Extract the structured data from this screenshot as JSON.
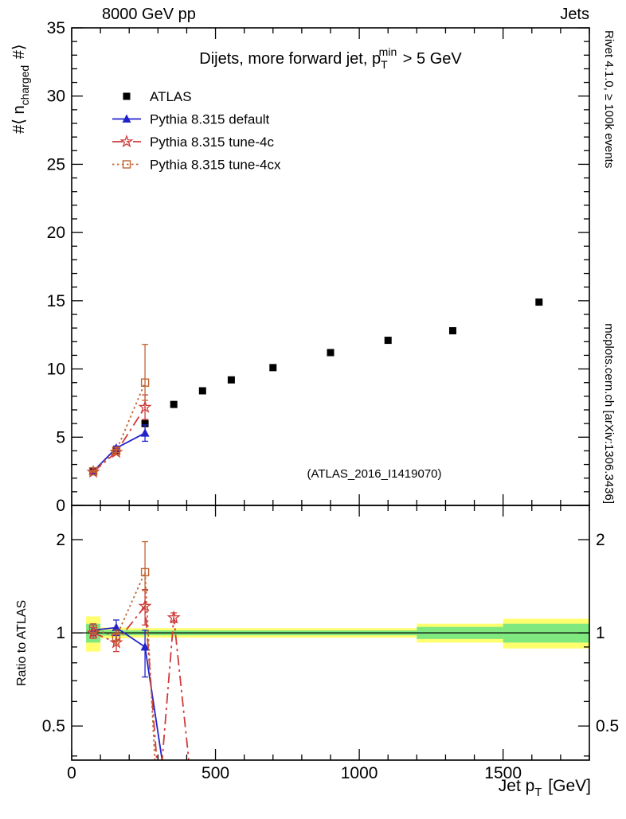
{
  "header": {
    "left": "8000 GeV pp",
    "right": "Jets"
  },
  "side_labels": {
    "top_right": "Rivet 4.1.0, ≥ 100k events",
    "bottom_right": "mcplots.cern.ch [arXiv:1306.3436]"
  },
  "watermark": "(ATLAS_2016_I1419070)",
  "chart_data": {
    "type": "scatter",
    "title_parts": {
      "pre": "Dijets, more forward jet, p",
      "sub": "T",
      "sup": "min",
      "post": " > 5 GeV"
    },
    "axes": {
      "x": {
        "label_parts": {
          "pre": "Jet p",
          "sub": "T",
          "post": " [GeV]"
        },
        "min": 0,
        "max": 1800,
        "major_ticks": [
          0,
          500,
          1000,
          1500
        ],
        "minor_step": 100
      },
      "y_main": {
        "label_parts": {
          "pre": "#⟨ n",
          "sub": "charged",
          "post": " #⟩"
        },
        "min": 0,
        "max": 35,
        "major_ticks": [
          0,
          5,
          10,
          15,
          20,
          25,
          30,
          35
        ],
        "minor_step": 1
      },
      "y_ratio": {
        "label": "Ratio to ATLAS",
        "scale": "log",
        "min": 0.388,
        "max": 2.58,
        "major_ticks": [
          0.5,
          1,
          2
        ],
        "major_tick_labels": [
          "0.5",
          "1",
          "2"
        ],
        "minor_ticks": [
          0.4,
          0.6,
          0.7,
          0.8,
          0.9
        ]
      }
    },
    "series": [
      {
        "name": "ATLAS",
        "marker": "square-filled",
        "color": "#000000",
        "line": "none",
        "main": {
          "x": [
            75,
            155,
            255,
            355,
            455,
            555,
            700,
            900,
            1100,
            1325,
            1625
          ],
          "y": [
            2.5,
            4.05,
            6.0,
            7.4,
            8.4,
            9.2,
            10.1,
            11.2,
            12.1,
            12.8,
            14.9
          ]
        }
      },
      {
        "name": "Pythia 8.315 default",
        "marker": "triangle-filled",
        "color": "#2222cc",
        "line": "solid",
        "main": {
          "x": [
            75,
            155,
            255
          ],
          "y": [
            2.5,
            4.2,
            5.3
          ],
          "yerr_lo": [
            0.05,
            0.15,
            0.6
          ],
          "yerr_hi": [
            0.05,
            0.15,
            0.6
          ]
        },
        "ratio": {
          "x": [
            75,
            155,
            255
          ],
          "y": [
            1.02,
            1.04,
            0.9
          ],
          "yerr_lo": [
            0.04,
            0.06,
            0.18
          ],
          "yerr_hi": [
            0.04,
            0.06,
            0.12
          ],
          "line_x": [
            75,
            155,
            255,
            340
          ],
          "line_y": [
            1.02,
            1.04,
            0.9,
            0.27
          ]
        }
      },
      {
        "name": "Pythia 8.315 tune-4c",
        "marker": "star-open",
        "color": "#d03a3a",
        "line": "dashdot",
        "main": {
          "x": [
            75,
            155,
            255
          ],
          "y": [
            2.45,
            3.9,
            7.2
          ],
          "yerr_lo": [
            0.05,
            0.15,
            0.9
          ],
          "yerr_hi": [
            0.05,
            0.15,
            0.9
          ]
        },
        "ratio": {
          "x": [
            75,
            155,
            255,
            355
          ],
          "y": [
            1.0,
            0.93,
            1.22,
            1.12
          ],
          "yerr_lo": [
            0.04,
            0.06,
            0.16,
            0.04
          ],
          "yerr_hi": [
            0.04,
            0.06,
            0.16,
            0.04
          ],
          "line_x": [
            75,
            155,
            255,
            305,
            355,
            425
          ],
          "line_y": [
            1.0,
            0.93,
            1.22,
            0.3,
            1.12,
            0.27
          ]
        }
      },
      {
        "name": "Pythia 8.315 tune-4cx",
        "marker": "square-open",
        "color": "#c0622f",
        "line": "dotted",
        "main": {
          "x": [
            75,
            155,
            255
          ],
          "y": [
            2.5,
            4.0,
            9.0
          ],
          "yerr_lo": [
            0.05,
            0.12,
            1.3
          ],
          "yerr_hi": [
            0.05,
            0.12,
            2.8
          ]
        },
        "ratio": {
          "x": [
            75,
            155,
            255
          ],
          "y": [
            1.03,
            0.97,
            1.57
          ],
          "yerr_lo": [
            0.04,
            0.05,
            0.2
          ],
          "yerr_hi": [
            0.04,
            0.05,
            0.4
          ],
          "line_x": [
            75,
            155,
            255,
            300
          ],
          "line_y": [
            1.03,
            0.97,
            1.57,
            0.25
          ]
        }
      }
    ],
    "ratio_bands": {
      "colors": {
        "outer": "#ffff6e",
        "inner": "#7fe87f",
        "center_line": "#000000"
      },
      "segments": [
        {
          "x1": 50,
          "x2": 100,
          "outer_lo": 0.87,
          "outer_hi": 1.13,
          "inner_lo": 0.93,
          "inner_hi": 1.07
        },
        {
          "x1": 100,
          "x2": 200,
          "outer_lo": 0.96,
          "outer_hi": 1.04,
          "inner_lo": 0.98,
          "inner_hi": 1.02
        },
        {
          "x1": 200,
          "x2": 1200,
          "outer_lo": 0.965,
          "outer_hi": 1.035,
          "inner_lo": 0.982,
          "inner_hi": 1.018
        },
        {
          "x1": 1200,
          "x2": 1500,
          "outer_lo": 0.93,
          "outer_hi": 1.07,
          "inner_lo": 0.955,
          "inner_hi": 1.045
        },
        {
          "x1": 1500,
          "x2": 1800,
          "outer_lo": 0.89,
          "outer_hi": 1.11,
          "inner_lo": 0.93,
          "inner_hi": 1.07
        }
      ]
    }
  }
}
